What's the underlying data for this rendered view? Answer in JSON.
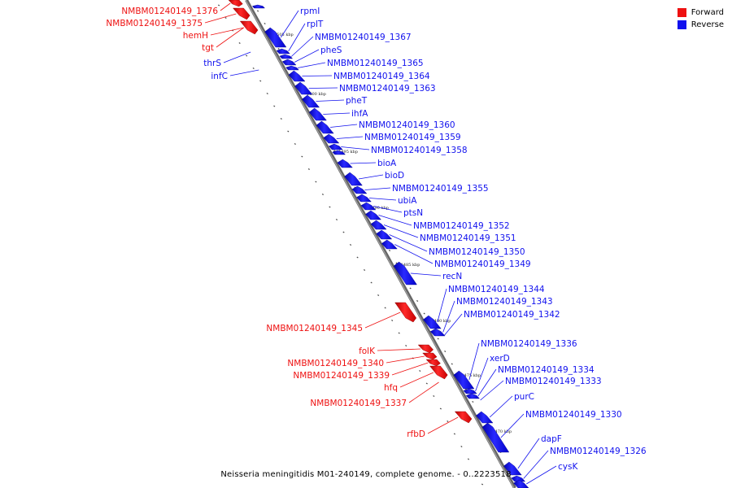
{
  "legend": {
    "forward_label": "Forward",
    "reverse_label": "Reverse",
    "forward_color": "#ee1111",
    "reverse_color": "#1111ee"
  },
  "footer": "Neisseria meningitidis M01-240149, complete genome. - 0..2223518",
  "ticks": [
    "1505 kbp",
    "1500 kbp",
    "1495 kbp",
    "1490 kbp",
    "1485 kbp",
    "1480 kbp",
    "1475 kbp",
    "1470 kbp"
  ],
  "genes": [
    {
      "label": "NMBM01240149_1376",
      "strand": "forward"
    },
    {
      "label": "NMBM01240149_1375",
      "strand": "forward"
    },
    {
      "label": "hemH",
      "strand": "forward"
    },
    {
      "label": "tgt",
      "strand": "forward"
    },
    {
      "label": "thrS",
      "strand": "reverse"
    },
    {
      "label": "infC",
      "strand": "reverse"
    },
    {
      "label": "rpmI",
      "strand": "reverse"
    },
    {
      "label": "rplT",
      "strand": "reverse"
    },
    {
      "label": "NMBM01240149_1367",
      "strand": "reverse"
    },
    {
      "label": "pheS",
      "strand": "reverse"
    },
    {
      "label": "NMBM01240149_1365",
      "strand": "reverse"
    },
    {
      "label": "NMBM01240149_1364",
      "strand": "reverse"
    },
    {
      "label": "NMBM01240149_1363",
      "strand": "reverse"
    },
    {
      "label": "pheT",
      "strand": "reverse"
    },
    {
      "label": "ihfA",
      "strand": "reverse"
    },
    {
      "label": "NMBM01240149_1360",
      "strand": "reverse"
    },
    {
      "label": "NMBM01240149_1359",
      "strand": "reverse"
    },
    {
      "label": "NMBM01240149_1358",
      "strand": "reverse"
    },
    {
      "label": "bioA",
      "strand": "reverse"
    },
    {
      "label": "bioD",
      "strand": "reverse"
    },
    {
      "label": "NMBM01240149_1355",
      "strand": "reverse"
    },
    {
      "label": "ubiA",
      "strand": "reverse"
    },
    {
      "label": "ptsN",
      "strand": "reverse"
    },
    {
      "label": "NMBM01240149_1352",
      "strand": "reverse"
    },
    {
      "label": "NMBM01240149_1351",
      "strand": "reverse"
    },
    {
      "label": "NMBM01240149_1350",
      "strand": "reverse"
    },
    {
      "label": "NMBM01240149_1349",
      "strand": "reverse"
    },
    {
      "label": "recN",
      "strand": "reverse"
    },
    {
      "label": "NMBM01240149_1344",
      "strand": "reverse"
    },
    {
      "label": "NMBM01240149_1343",
      "strand": "reverse"
    },
    {
      "label": "NMBM01240149_1342",
      "strand": "reverse"
    },
    {
      "label": "NMBM01240149_1345",
      "strand": "forward"
    },
    {
      "label": "folK",
      "strand": "forward"
    },
    {
      "label": "NMBM01240149_1340",
      "strand": "forward"
    },
    {
      "label": "NMBM01240149_1339",
      "strand": "forward"
    },
    {
      "label": "hfq",
      "strand": "forward"
    },
    {
      "label": "NMBM01240149_1337",
      "strand": "forward"
    },
    {
      "label": "NMBM01240149_1336",
      "strand": "reverse"
    },
    {
      "label": "xerD",
      "strand": "reverse"
    },
    {
      "label": "NMBM01240149_1334",
      "strand": "reverse"
    },
    {
      "label": "NMBM01240149_1333",
      "strand": "reverse"
    },
    {
      "label": "purC",
      "strand": "reverse"
    },
    {
      "label": "NMBM01240149_1330",
      "strand": "reverse"
    },
    {
      "label": "rfbD",
      "strand": "forward"
    },
    {
      "label": "dapF",
      "strand": "reverse"
    },
    {
      "label": "NMBM01240149_1326",
      "strand": "reverse"
    },
    {
      "label": "cysK",
      "strand": "reverse"
    }
  ]
}
